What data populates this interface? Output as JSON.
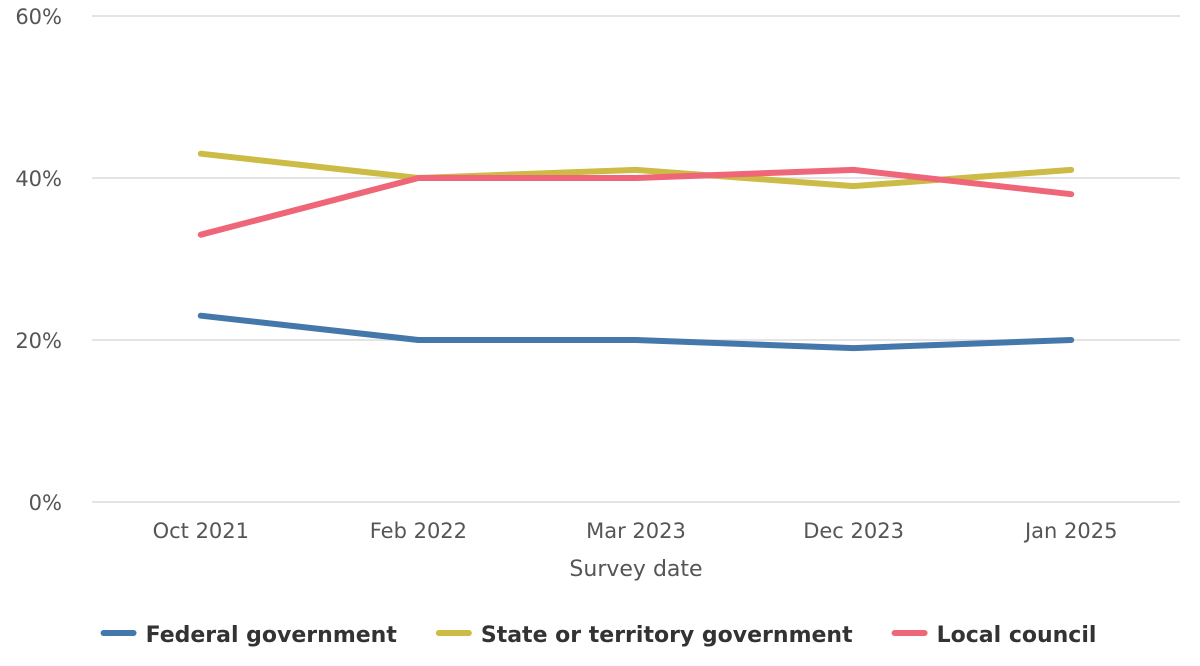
{
  "chart_data": {
    "type": "line",
    "categories": [
      "Oct 2021",
      "Feb 2022",
      "Mar 2023",
      "Dec 2023",
      "Jan 2025"
    ],
    "xlabel": "Survey date",
    "ylabel": "",
    "ylim": [
      0,
      60
    ],
    "yticks": [
      "0%",
      "20%",
      "40%",
      "60%"
    ],
    "grid": true,
    "legend_position": "bottom",
    "series": [
      {
        "name": "Federal government",
        "color": "#4477aa",
        "values": [
          23,
          20,
          20,
          19,
          20
        ]
      },
      {
        "name": "State or territory government",
        "color": "#ccbb44",
        "values": [
          43,
          40,
          41,
          39,
          41
        ]
      },
      {
        "name": "Local council",
        "color": "#ee6677",
        "values": [
          33,
          40,
          40,
          41,
          38
        ]
      }
    ]
  }
}
